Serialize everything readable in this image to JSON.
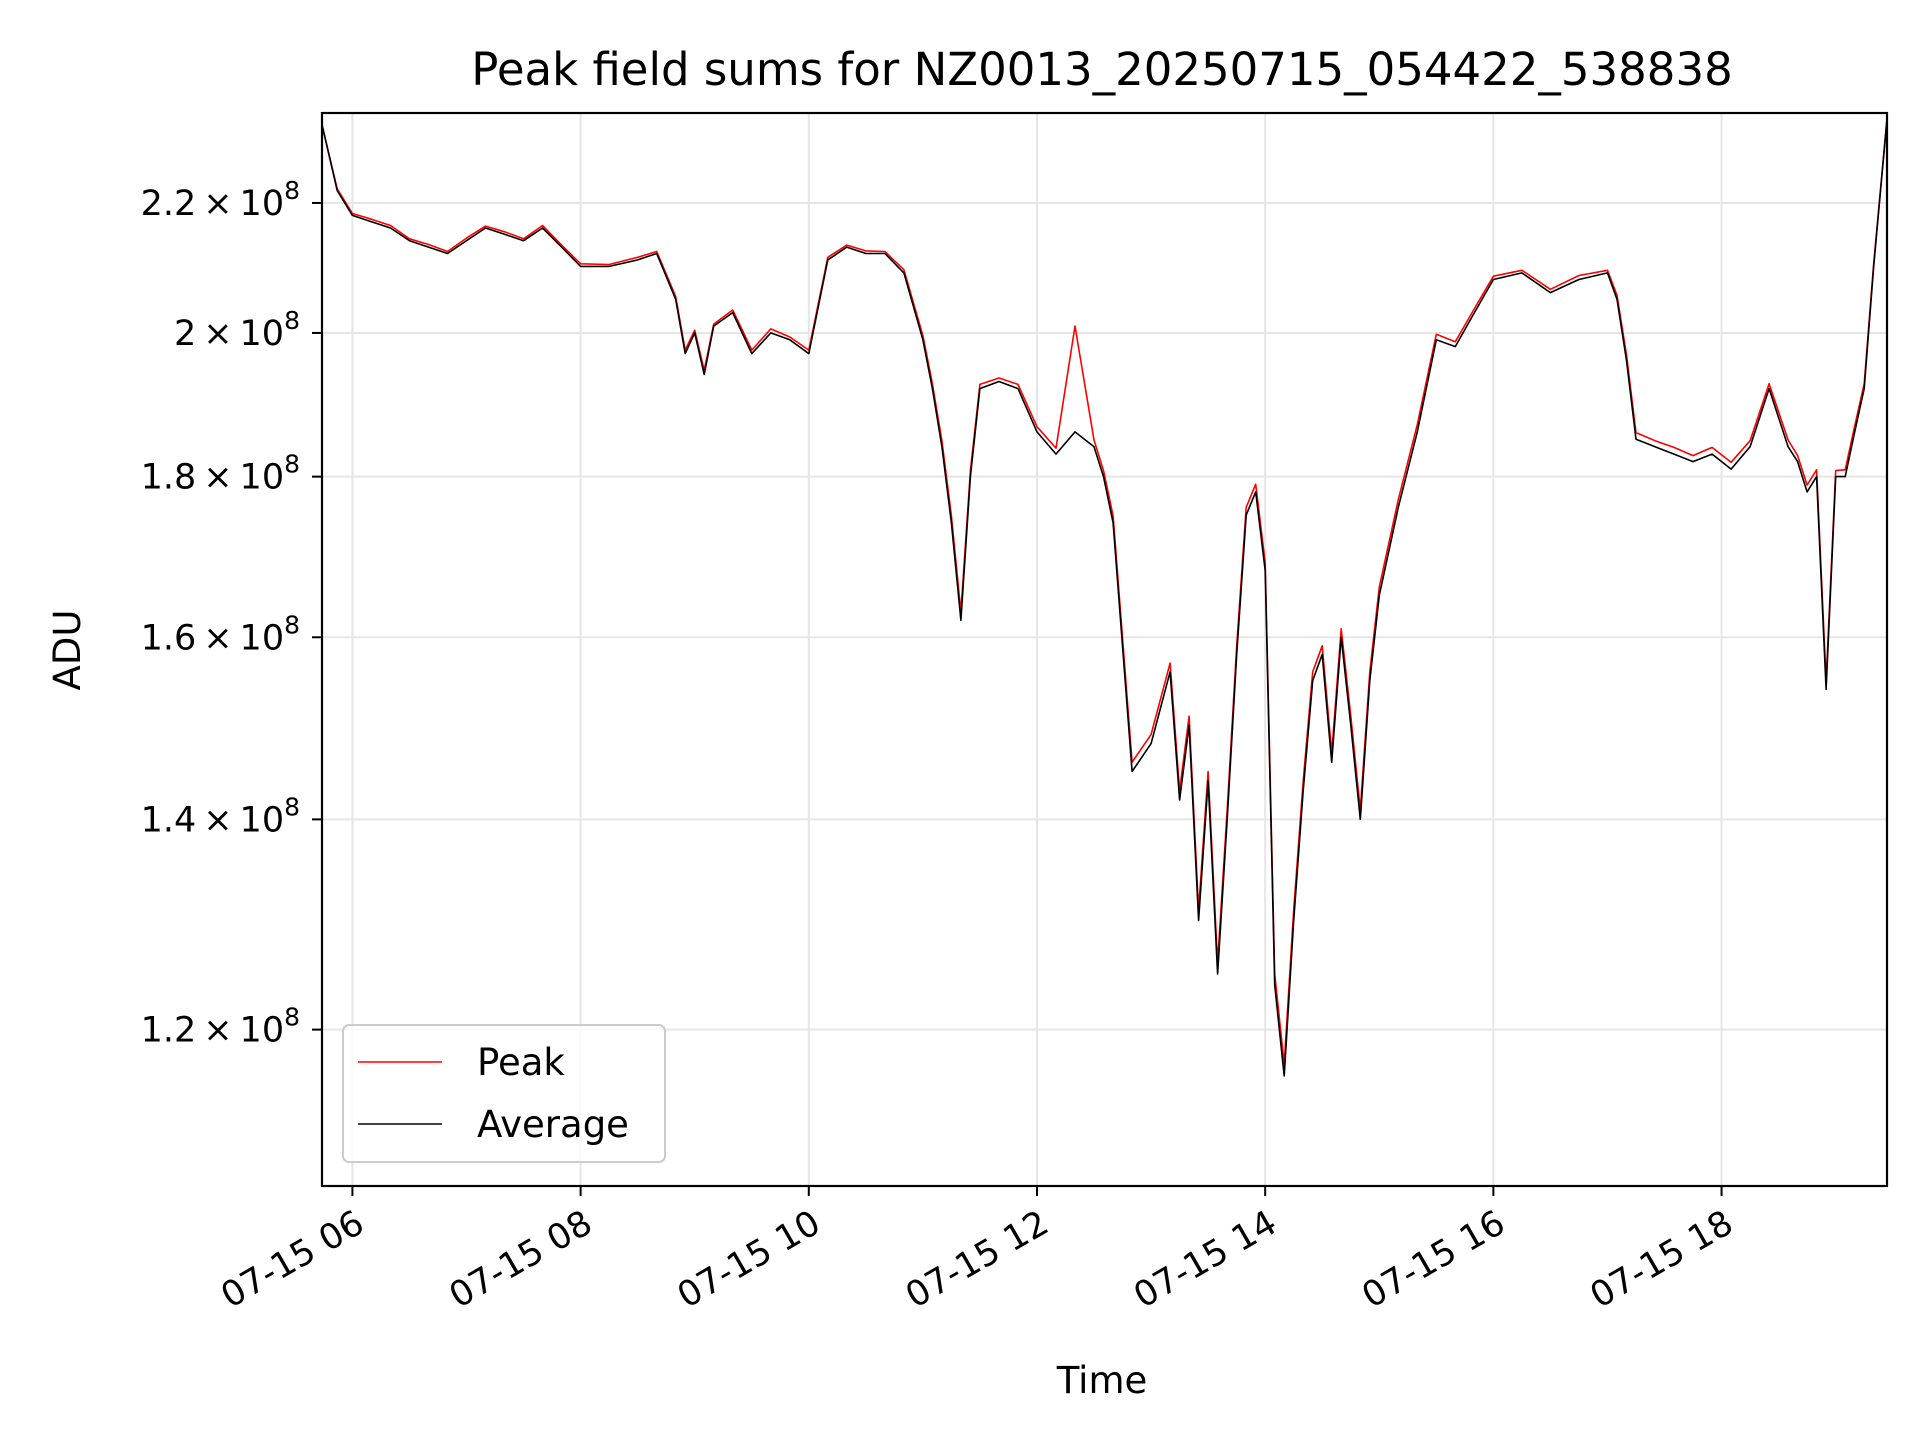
{
  "chart_data": {
    "type": "line",
    "title": "Peak field sums for NZ0013_20250715_054422_538838",
    "xlabel": "Time",
    "ylabel": "ADU",
    "x_axis": {
      "kind": "time",
      "range": [
        "2025-07-15 05:44",
        "2025-07-15 19:27"
      ],
      "ticks": [
        {
          "value": "2025-07-15 06:00",
          "label": "07-15 06"
        },
        {
          "value": "2025-07-15 08:00",
          "label": "07-15 08"
        },
        {
          "value": "2025-07-15 10:00",
          "label": "07-15 10"
        },
        {
          "value": "2025-07-15 12:00",
          "label": "07-15 12"
        },
        {
          "value": "2025-07-15 14:00",
          "label": "07-15 14"
        },
        {
          "value": "2025-07-15 16:00",
          "label": "07-15 16"
        },
        {
          "value": "2025-07-15 18:00",
          "label": "07-15 18"
        }
      ]
    },
    "y_axis": {
      "scale": "log",
      "range": [
        107000000,
        235000000
      ],
      "ticks": [
        {
          "value": 120000000,
          "mantissa": "1.2",
          "exponent": "8"
        },
        {
          "value": 140000000,
          "mantissa": "1.4",
          "exponent": "8"
        },
        {
          "value": 160000000,
          "mantissa": "1.6",
          "exponent": "8"
        },
        {
          "value": 180000000,
          "mantissa": "1.8",
          "exponent": "8"
        },
        {
          "value": 200000000,
          "mantissa": "2",
          "exponent": "8"
        },
        {
          "value": 220000000,
          "mantissa": "2.2",
          "exponent": "8"
        }
      ]
    },
    "grid": true,
    "legend": {
      "position": "lower-left"
    },
    "series": [
      {
        "name": "Peak",
        "color": "#ff0000"
      },
      {
        "name": "Average",
        "color": "#000000"
      }
    ],
    "data": {
      "x": [
        "2025-07-15 05:44",
        "2025-07-15 05:52",
        "2025-07-15 06:00",
        "2025-07-15 06:10",
        "2025-07-15 06:20",
        "2025-07-15 06:30",
        "2025-07-15 06:40",
        "2025-07-15 06:50",
        "2025-07-15 07:00",
        "2025-07-15 07:10",
        "2025-07-15 07:20",
        "2025-07-15 07:30",
        "2025-07-15 07:40",
        "2025-07-15 07:50",
        "2025-07-15 08:00",
        "2025-07-15 08:15",
        "2025-07-15 08:30",
        "2025-07-15 08:40",
        "2025-07-15 08:50",
        "2025-07-15 08:55",
        "2025-07-15 09:00",
        "2025-07-15 09:05",
        "2025-07-15 09:10",
        "2025-07-15 09:20",
        "2025-07-15 09:30",
        "2025-07-15 09:40",
        "2025-07-15 09:50",
        "2025-07-15 10:00",
        "2025-07-15 10:10",
        "2025-07-15 10:20",
        "2025-07-15 10:30",
        "2025-07-15 10:40",
        "2025-07-15 10:50",
        "2025-07-15 11:00",
        "2025-07-15 11:05",
        "2025-07-15 11:10",
        "2025-07-15 11:15",
        "2025-07-15 11:20",
        "2025-07-15 11:25",
        "2025-07-15 11:30",
        "2025-07-15 11:40",
        "2025-07-15 11:50",
        "2025-07-15 12:00",
        "2025-07-15 12:10",
        "2025-07-15 12:20",
        "2025-07-15 12:30",
        "2025-07-15 12:35",
        "2025-07-15 12:40",
        "2025-07-15 12:50",
        "2025-07-15 13:00",
        "2025-07-15 13:10",
        "2025-07-15 13:15",
        "2025-07-15 13:20",
        "2025-07-15 13:25",
        "2025-07-15 13:30",
        "2025-07-15 13:35",
        "2025-07-15 13:40",
        "2025-07-15 13:45",
        "2025-07-15 13:50",
        "2025-07-15 13:55",
        "2025-07-15 14:00",
        "2025-07-15 14:05",
        "2025-07-15 14:10",
        "2025-07-15 14:15",
        "2025-07-15 14:20",
        "2025-07-15 14:25",
        "2025-07-15 14:30",
        "2025-07-15 14:35",
        "2025-07-15 14:40",
        "2025-07-15 14:45",
        "2025-07-15 14:50",
        "2025-07-15 14:55",
        "2025-07-15 15:00",
        "2025-07-15 15:10",
        "2025-07-15 15:20",
        "2025-07-15 15:30",
        "2025-07-15 15:40",
        "2025-07-15 15:50",
        "2025-07-15 16:00",
        "2025-07-15 16:15",
        "2025-07-15 16:30",
        "2025-07-15 16:45",
        "2025-07-15 17:00",
        "2025-07-15 17:05",
        "2025-07-15 17:10",
        "2025-07-15 17:15",
        "2025-07-15 17:25",
        "2025-07-15 17:35",
        "2025-07-15 17:45",
        "2025-07-15 17:55",
        "2025-07-15 18:05",
        "2025-07-15 18:15",
        "2025-07-15 18:25",
        "2025-07-15 18:35",
        "2025-07-15 18:40",
        "2025-07-15 18:45",
        "2025-07-15 18:50",
        "2025-07-15 18:55",
        "2025-07-15 19:00",
        "2025-07-15 19:05",
        "2025-07-15 19:10",
        "2025-07-15 19:15",
        "2025-07-15 19:20",
        "2025-07-15 19:27"
      ],
      "average": [
        233000000.0,
        222000000.0,
        218000000.0,
        217000000.0,
        216000000.0,
        214000000.0,
        213000000.0,
        212000000.0,
        214000000.0,
        216000000.0,
        215000000.0,
        214000000.0,
        216000000.0,
        213000000.0,
        210000000.0,
        210000000.0,
        211000000.0,
        212000000.0,
        205000000.0,
        197000000.0,
        200000000.0,
        194000000.0,
        201000000.0,
        203000000.0,
        197000000.0,
        200000000.0,
        199000000.0,
        197000000.0,
        211000000.0,
        213000000.0,
        212000000.0,
        212000000.0,
        209000000.0,
        199000000.0,
        192000000.0,
        184000000.0,
        174000000.0,
        162000000.0,
        180000000.0,
        192000000.0,
        193000000.0,
        192000000.0,
        186000000.0,
        183000000.0,
        186000000.0,
        184000000.0,
        180000000.0,
        174000000.0,
        145000000.0,
        148000000.0,
        156000000.0,
        142000000.0,
        150000000.0,
        130000000.0,
        144000000.0,
        125000000.0,
        140000000.0,
        158000000.0,
        175000000.0,
        178000000.0,
        168000000.0,
        124000000.0,
        116000000.0,
        130000000.0,
        143000000.0,
        155000000.0,
        158000000.0,
        146000000.0,
        160000000.0,
        150000000.0,
        140000000.0,
        155000000.0,
        165000000.0,
        176000000.0,
        186000000.0,
        199000000.0,
        198000000.0,
        203000000.0,
        208000000.0,
        209000000.0,
        206000000.0,
        208000000.0,
        209000000.0,
        205000000.0,
        196000000.0,
        185000000.0,
        184000000.0,
        183000000.0,
        182000000.0,
        183000000.0,
        181000000.0,
        184000000.0,
        192000000.0,
        184000000.0,
        182000000.0,
        178000000.0,
        180000000.0,
        154000000.0,
        180000000.0,
        180000000.0,
        186000000.0,
        192000000.0,
        210000000.0,
        234000000.0
      ],
      "peak": [
        233000000.0,
        222300000.0,
        218300000.0,
        217400000.0,
        216400000.0,
        214300000.0,
        213400000.0,
        212300000.0,
        214400000.0,
        216300000.0,
        215400000.0,
        214300000.0,
        216400000.0,
        213300000.0,
        210400000.0,
        210300000.0,
        211400000.0,
        212300000.0,
        205400000.0,
        197500000.0,
        200400000.0,
        194600000.0,
        201300000.0,
        203400000.0,
        197500000.0,
        200600000.0,
        199400000.0,
        197500000.0,
        211400000.0,
        213300000.0,
        212400000.0,
        212300000.0,
        209500000.0,
        199600000.0,
        192700000.0,
        184800000.0,
        174900000.0,
        163000000.0,
        180800000.0,
        192600000.0,
        193500000.0,
        192600000.0,
        186700000.0,
        183800000.0,
        201000000.0,
        184900000.0,
        180800000.0,
        174900000.0,
        146000000.0,
        149000000.0,
        157000000.0,
        143000000.0,
        151000000.0,
        131000000.0,
        145000000.0,
        126000000.0,
        141000000.0,
        159000000.0,
        176000000.0,
        179000000.0,
        169000000.0,
        125000000.0,
        117000000.0,
        131000000.0,
        144000000.0,
        156000000.0,
        159000000.0,
        147000000.0,
        161000000.0,
        151000000.0,
        141000000.0,
        156000000.0,
        166000000.0,
        177000000.0,
        187000000.0,
        199800000.0,
        198700000.0,
        203600000.0,
        208500000.0,
        209400000.0,
        206500000.0,
        208600000.0,
        209400000.0,
        205600000.0,
        196800000.0,
        185900000.0,
        184800000.0,
        183900000.0,
        182800000.0,
        183900000.0,
        181900000.0,
        184800000.0,
        192700000.0,
        184900000.0,
        182800000.0,
        178900000.0,
        180900000.0,
        155000000.0,
        180800000.0,
        180900000.0,
        186800000.0,
        192700000.0,
        210500000.0,
        234000000.0
      ]
    }
  }
}
